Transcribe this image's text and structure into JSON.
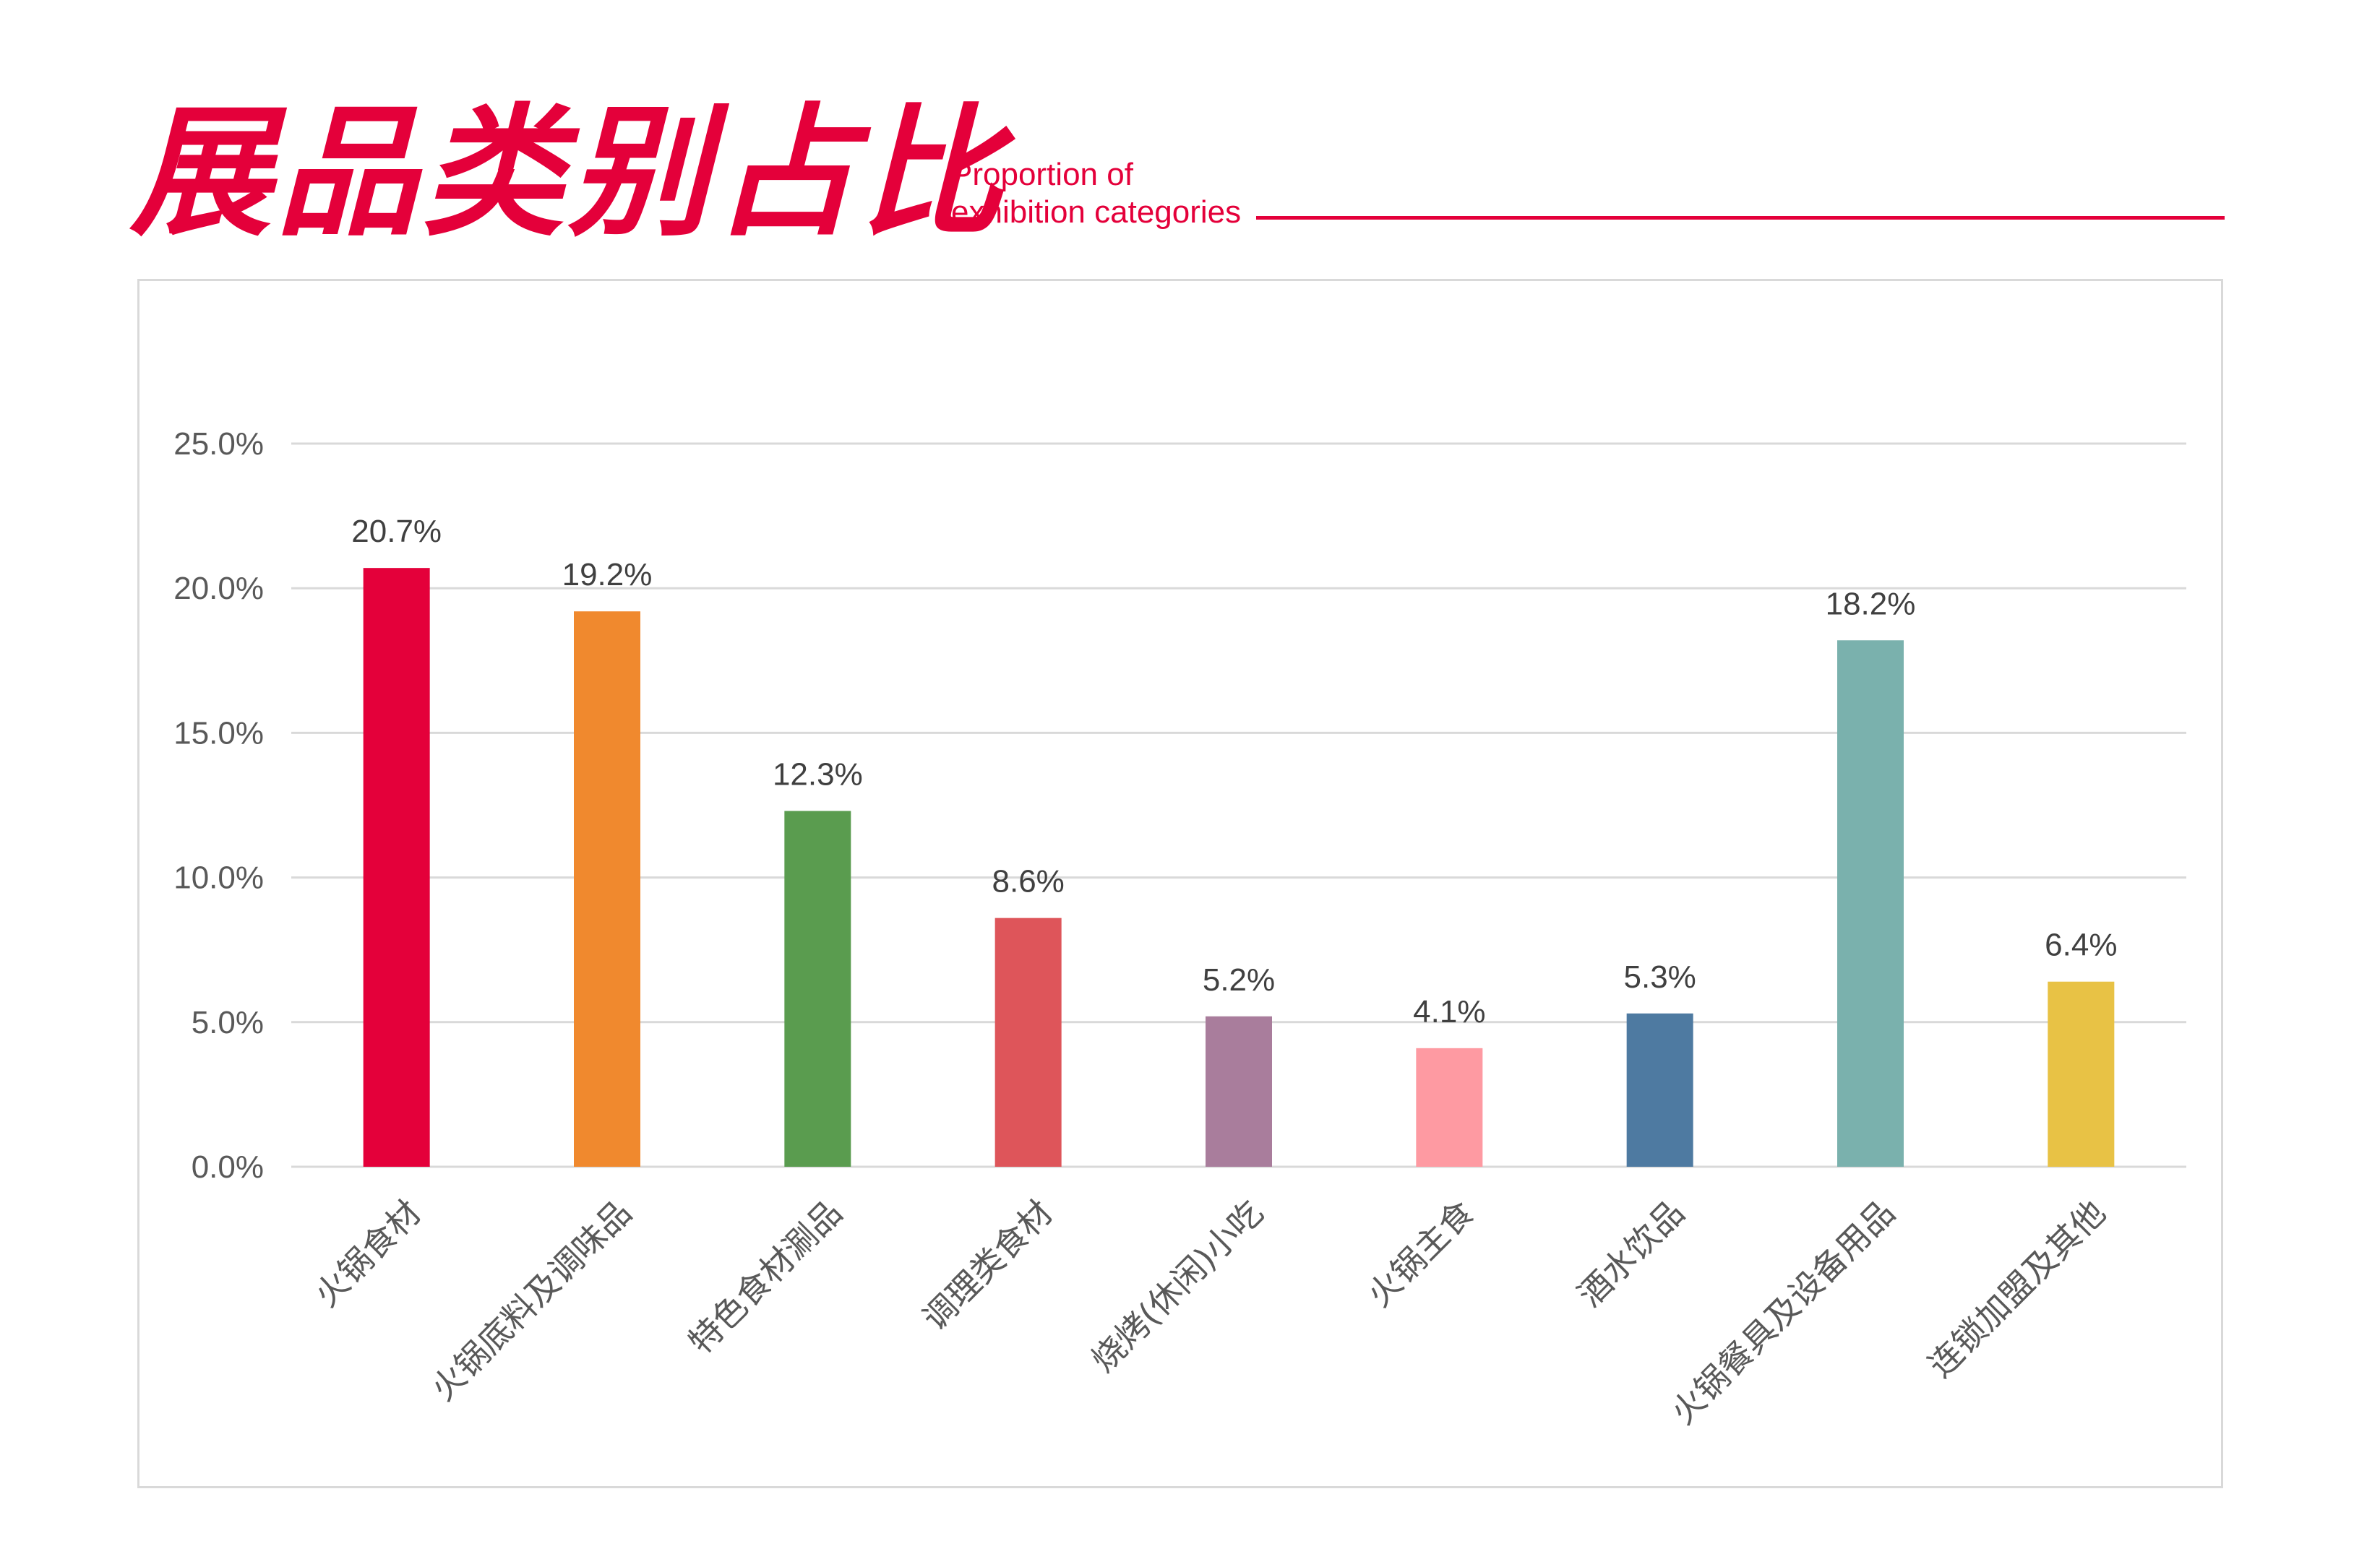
{
  "header": {
    "title": "展品类别占比",
    "subtitle_line1": "Proportion of",
    "subtitle_line2": "exhibition categories"
  },
  "colors": {
    "brand": "#e4003a",
    "grid": "#d9d9d9",
    "frame": "#d9d9d9"
  },
  "chart_data": {
    "type": "bar",
    "title": "",
    "xlabel": "",
    "ylabel": "",
    "categories": [
      "火锅食材",
      "火锅底料及调味品",
      "特色食材涮品",
      "调理类食材",
      "烧烤(休闲)小吃",
      "火锅主食",
      "酒水饮品",
      "火锅餐具及设备用品",
      "连锁加盟及其他"
    ],
    "values": [
      20.7,
      19.2,
      12.3,
      8.6,
      5.2,
      4.1,
      5.3,
      18.2,
      6.4
    ],
    "value_labels": [
      "20.7%",
      "19.2%",
      "12.3%",
      "8.6%",
      "5.2%",
      "4.1%",
      "5.3%",
      "18.2%",
      "6.4%"
    ],
    "bar_colors": [
      "#e4003a",
      "#f0892e",
      "#5a9c4f",
      "#de555a",
      "#a97d9c",
      "#fe9aa2",
      "#4e7aa1",
      "#7ab1ad",
      "#e8c245"
    ],
    "ylim": [
      0,
      25
    ],
    "yticks": [
      0,
      5,
      10,
      15,
      20,
      25
    ],
    "ytick_labels": [
      "0.0%",
      "5.0%",
      "10.0%",
      "15.0%",
      "20.0%",
      "25.0%"
    ],
    "grid": true,
    "legend": "none"
  }
}
